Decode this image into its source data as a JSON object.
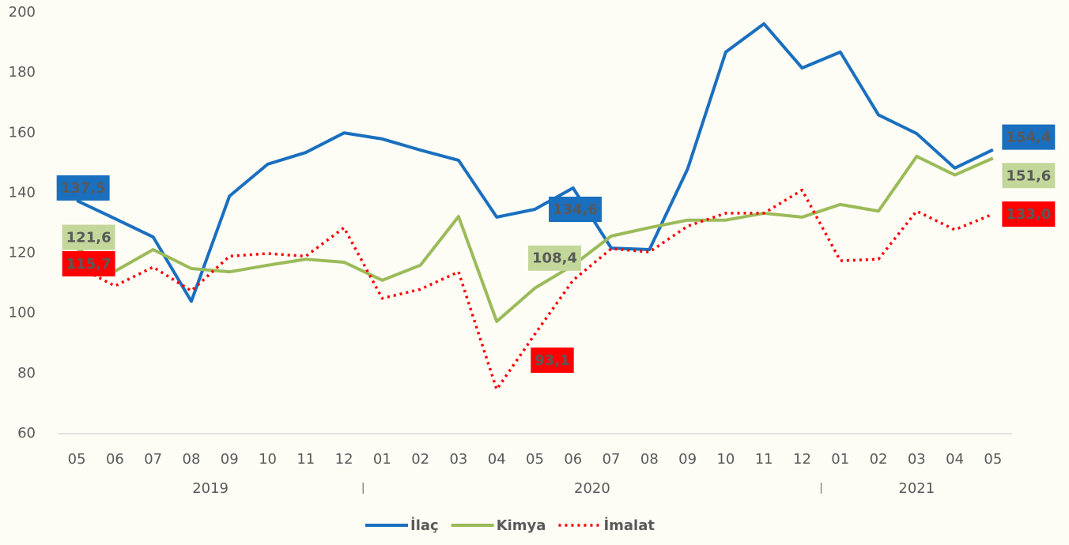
{
  "chart_data": {
    "type": "line",
    "categories": [
      "05",
      "06",
      "07",
      "08",
      "09",
      "10",
      "11",
      "12",
      "01",
      "02",
      "03",
      "04",
      "05",
      "06",
      "07",
      "08",
      "09",
      "10",
      "11",
      "12",
      "01",
      "02",
      "03",
      "04",
      "05"
    ],
    "groups": [
      {
        "label": "2019",
        "count": 8
      },
      {
        "label": "2020",
        "count": 12
      },
      {
        "label": "2021",
        "count": 5
      }
    ],
    "series": [
      {
        "name": "İlaç",
        "color": "#1a6fbf",
        "dash": false,
        "values": [
          137.5,
          131.5,
          125.4,
          104,
          139,
          149.6,
          153.5,
          160,
          158,
          154.3,
          150.9,
          132,
          134.6,
          141.7,
          121.7,
          121.2,
          148,
          186.9,
          196.3,
          181.6,
          186.9,
          166,
          159.8,
          148.3,
          154.4
        ],
        "value_labels": [
          "137,5",
          null,
          null,
          null,
          null,
          null,
          null,
          null,
          null,
          null,
          null,
          null,
          "134,6",
          null,
          null,
          null,
          null,
          null,
          null,
          null,
          null,
          null,
          null,
          null,
          "154,4"
        ]
      },
      {
        "name": "Kimya",
        "color": "#9bbb59",
        "dash": false,
        "values": [
          121.6,
          114,
          121.2,
          114.9,
          113.8,
          116,
          118,
          117,
          111,
          116,
          132.2,
          97.3,
          108.4,
          116,
          125.7,
          128.5,
          131,
          131,
          133.3,
          132,
          136.2,
          134,
          152.2,
          146,
          151.6
        ],
        "value_labels": [
          "121,6",
          null,
          null,
          null,
          null,
          null,
          null,
          null,
          null,
          null,
          null,
          null,
          "108,4",
          null,
          null,
          null,
          null,
          null,
          null,
          null,
          null,
          null,
          null,
          null,
          "151,6"
        ]
      },
      {
        "name": "İmalat",
        "color": "#ff0000",
        "dash": true,
        "values": [
          115.7,
          109.1,
          115.4,
          107.5,
          119,
          119.9,
          119,
          128.5,
          105,
          108,
          113.8,
          74.7,
          93.1,
          111,
          121.5,
          120.4,
          129,
          133.3,
          133.3,
          141,
          117.5,
          118,
          134,
          127.8,
          133
        ],
        "value_labels": [
          "115,7",
          null,
          null,
          null,
          null,
          null,
          null,
          null,
          null,
          null,
          null,
          null,
          "93,1",
          null,
          null,
          null,
          null,
          null,
          null,
          null,
          null,
          null,
          null,
          null,
          "133,0"
        ]
      }
    ],
    "ylim": [
      60,
      200
    ],
    "yticks": [
      60,
      80,
      100,
      120,
      140,
      160,
      180,
      200
    ],
    "grid": false,
    "legend": "bottom"
  }
}
